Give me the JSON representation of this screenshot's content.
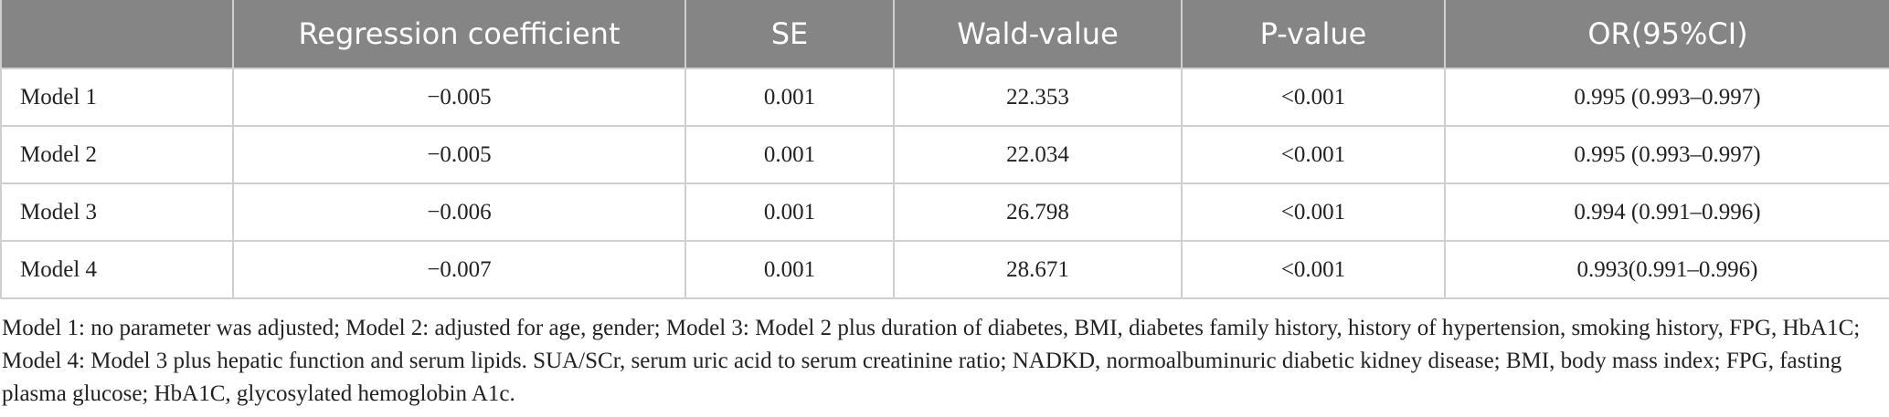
{
  "table": {
    "header": [
      "Regression coefficient",
      "SE",
      "Wald-value",
      "P-value",
      "OR(95%CI)"
    ],
    "rows": [
      [
        "Model 1",
        "−0.005",
        "0.001",
        "22.353",
        "<0.001",
        "0.995 (0.993–0.997)"
      ],
      [
        "Model 2",
        "−0.005",
        "0.001",
        "22.034",
        "<0.001",
        "0.995 (0.993–0.997)"
      ],
      [
        "Model 3",
        "−0.006",
        "0.001",
        "26.798",
        "<0.001",
        "0.994 (0.991–0.996)"
      ],
      [
        "Model 4",
        "−0.007",
        "0.001",
        "28.671",
        "<0.001",
        "0.993(0.991–0.996)"
      ]
    ]
  },
  "footnote": "Model 1: no parameter was adjusted; Model 2: adjusted for age, gender; Model 3: Model 2 plus duration of diabetes, BMI, diabetes family history, history of hypertension, smoking history, FPG, HbA1C; Model 4: Model 3 plus hepatic function and serum lipids. SUA/SCr, serum uric acid to serum creatinine ratio; NADKD, normoalbuminuric diabetic kidney disease; BMI, body mass index; FPG, fasting plasma glucose; HbA1C, glycosylated hemoglobin A1c."
}
